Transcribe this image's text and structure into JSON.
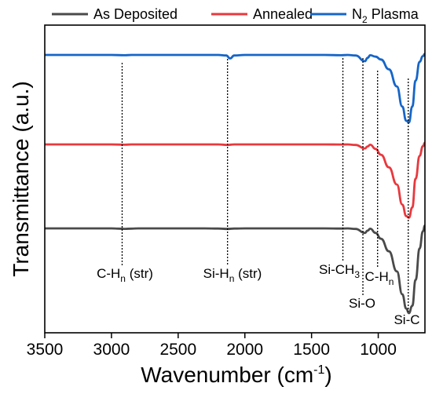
{
  "chart_data": {
    "type": "line",
    "xlabel": "Wavenumber",
    "xlabel_unit_base": "(cm",
    "xlabel_unit_exp": "-1",
    "xlabel_unit_close": ")",
    "ylabel": "Transmittance (a.u.)",
    "xlim": [
      3500,
      650
    ],
    "x_ticks": [
      3500,
      3000,
      2500,
      2000,
      1500,
      1000
    ],
    "x_tick_labels": [
      "3500",
      "3000",
      "2500",
      "2000",
      "1500",
      "1000"
    ],
    "legend_position": "top",
    "series": [
      {
        "name": "As Deposited",
        "color": "#4a4a4a",
        "points": [
          [
            3500,
            0
          ],
          [
            3000,
            0
          ],
          [
            2950,
            -0.04
          ],
          [
            2900,
            -0.08
          ],
          [
            2850,
            -0.04
          ],
          [
            2800,
            0
          ],
          [
            2300,
            0
          ],
          [
            2200,
            -0.03
          ],
          [
            2130,
            -0.1
          ],
          [
            2080,
            -0.03
          ],
          [
            2000,
            0
          ],
          [
            1400,
            0
          ],
          [
            1280,
            -0.03
          ],
          [
            1230,
            0
          ],
          [
            1170,
            -0.1
          ],
          [
            1100,
            -0.8
          ],
          [
            1080,
            -0.4
          ],
          [
            1060,
            -0.05
          ],
          [
            1020,
            -0.8
          ],
          [
            980,
            -1.8
          ],
          [
            920,
            -4.0
          ],
          [
            860,
            -7.5
          ],
          [
            820,
            -11.5
          ],
          [
            790,
            -14.0
          ],
          [
            770,
            -14.8
          ],
          [
            745,
            -13.5
          ],
          [
            720,
            -9.0
          ],
          [
            690,
            -3.5
          ],
          [
            665,
            -0.5
          ],
          [
            650,
            0.5
          ]
        ]
      },
      {
        "name": "Annealed",
        "color": "#e8383d",
        "points": [
          [
            3500,
            0
          ],
          [
            3000,
            0
          ],
          [
            2900,
            -0.05
          ],
          [
            2850,
            0
          ],
          [
            2200,
            0
          ],
          [
            2130,
            -0.08
          ],
          [
            2080,
            0
          ],
          [
            1400,
            0
          ],
          [
            1280,
            -0.02
          ],
          [
            1230,
            0
          ],
          [
            1170,
            -0.1
          ],
          [
            1100,
            -0.7
          ],
          [
            1080,
            -0.35
          ],
          [
            1060,
            -0.05
          ],
          [
            1020,
            -0.8
          ],
          [
            980,
            -1.8
          ],
          [
            920,
            -4.0
          ],
          [
            860,
            -7.0
          ],
          [
            820,
            -10.5
          ],
          [
            790,
            -12.5
          ],
          [
            770,
            -12.8
          ],
          [
            745,
            -11.0
          ],
          [
            720,
            -6.0
          ],
          [
            690,
            -2.0
          ],
          [
            665,
            -0.3
          ],
          [
            650,
            0.3
          ]
        ]
      },
      {
        "name": "N₂ Plasma",
        "color": "#1565c8",
        "points": [
          [
            3500,
            0
          ],
          [
            3000,
            0
          ],
          [
            2900,
            -0.05
          ],
          [
            2850,
            0
          ],
          [
            2200,
            0
          ],
          [
            2140,
            -0.1
          ],
          [
            2110,
            -0.6
          ],
          [
            2080,
            -0.1
          ],
          [
            2000,
            0
          ],
          [
            1400,
            0
          ],
          [
            1280,
            -0.05
          ],
          [
            1230,
            0
          ],
          [
            1170,
            -0.1
          ],
          [
            1100,
            -1.1
          ],
          [
            1080,
            -0.5
          ],
          [
            1060,
            -0.05
          ],
          [
            1020,
            -0.3
          ],
          [
            980,
            -0.8
          ],
          [
            920,
            -2.5
          ],
          [
            860,
            -5.5
          ],
          [
            820,
            -9.0
          ],
          [
            790,
            -11.5
          ],
          [
            770,
            -11.8
          ],
          [
            745,
            -9.0
          ],
          [
            720,
            -4.5
          ],
          [
            690,
            -1.2
          ],
          [
            665,
            -0.2
          ],
          [
            650,
            0.2
          ]
        ]
      }
    ],
    "annotations": [
      {
        "base": "C-H",
        "sub": "n",
        "tail": " (str)",
        "x": 2920
      },
      {
        "base": "Si-H",
        "sub": "n",
        "tail": " (str)",
        "x": 2130
      },
      {
        "base": "Si-CH",
        "sub": "3",
        "tail": "",
        "x": 1265
      },
      {
        "base": "Si-O",
        "sub": "",
        "tail": "",
        "x": 1115
      },
      {
        "base": "C-H",
        "sub": "n",
        "tail": "",
        "x": 1005
      },
      {
        "base": "Si-C",
        "sub": "",
        "tail": "",
        "x": 775
      }
    ]
  }
}
